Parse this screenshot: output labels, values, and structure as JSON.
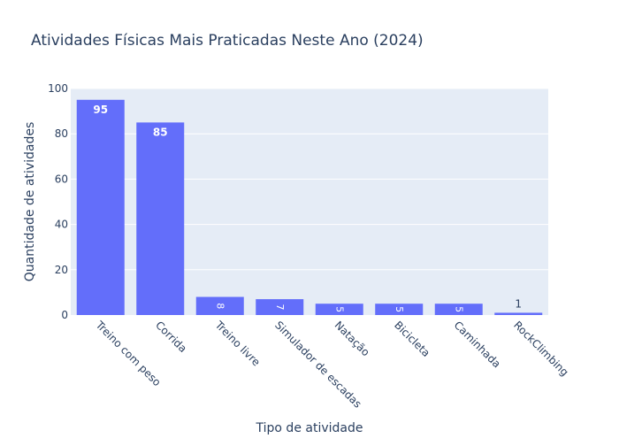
{
  "chart_data": {
    "type": "bar",
    "title": "Atividades Físicas Mais Praticadas Neste Ano (2024)",
    "xlabel": "Tipo de atividade",
    "ylabel": "Quantidade de atividades",
    "categories": [
      "Treino com peso",
      "Corrida",
      "Treino livre",
      "Simulador de escadas",
      "Natação",
      "Bicicleta",
      "Caminhada",
      "RockClimbing"
    ],
    "values": [
      95,
      85,
      8,
      7,
      5,
      5,
      5,
      1
    ],
    "ylim": [
      0,
      100
    ],
    "yticks": [
      0,
      20,
      40,
      60,
      80,
      100
    ],
    "grid": true,
    "legend": "none",
    "colors": {
      "bar": "#636efa",
      "plot_bg": "#e5ecf6",
      "grid": "#ffffff",
      "text": "#2a3f5f",
      "label_inside": "#ffffff"
    }
  }
}
